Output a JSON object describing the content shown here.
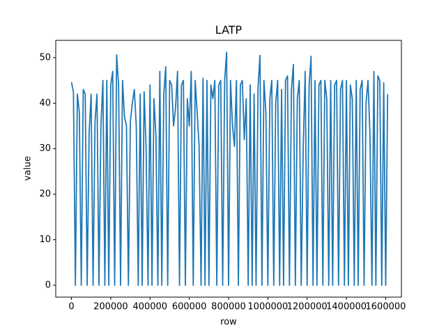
{
  "chart_data": {
    "type": "line",
    "title": "LATP",
    "x_label": "row",
    "y_label": "value",
    "color": "#1f77b4",
    "x": [
      0,
      10000,
      20000,
      30000,
      40000,
      50000,
      60000,
      70000,
      80000,
      90000,
      100000,
      110000,
      120000,
      130000,
      140000,
      150000,
      160000,
      170000,
      180000,
      190000,
      200000,
      210000,
      220000,
      230000,
      240000,
      250000,
      260000,
      270000,
      280000,
      290000,
      300000,
      310000,
      320000,
      330000,
      340000,
      350000,
      360000,
      370000,
      380000,
      390000,
      400000,
      410000,
      420000,
      430000,
      440000,
      450000,
      460000,
      470000,
      480000,
      490000,
      500000,
      510000,
      520000,
      530000,
      540000,
      550000,
      560000,
      570000,
      580000,
      590000,
      600000,
      610000,
      620000,
      630000,
      640000,
      650000,
      660000,
      670000,
      680000,
      690000,
      700000,
      710000,
      720000,
      730000,
      740000,
      750000,
      760000,
      770000,
      780000,
      790000,
      800000,
      810000,
      820000,
      830000,
      840000,
      850000,
      860000,
      870000,
      880000,
      890000,
      900000,
      910000,
      920000,
      930000,
      940000,
      950000,
      960000,
      970000,
      980000,
      990000,
      1000000,
      1010000,
      1020000,
      1030000,
      1040000,
      1050000,
      1060000,
      1070000,
      1080000,
      1090000,
      1100000,
      1110000,
      1120000,
      1130000,
      1140000,
      1150000,
      1160000,
      1170000,
      1180000,
      1190000,
      1200000,
      1210000,
      1220000,
      1230000,
      1240000,
      1250000,
      1260000,
      1270000,
      1280000,
      1290000,
      1300000,
      1310000,
      1320000,
      1330000,
      1340000,
      1350000,
      1360000,
      1370000,
      1380000,
      1390000,
      1400000,
      1410000,
      1420000,
      1430000,
      1440000,
      1450000,
      1460000,
      1470000,
      1480000,
      1490000,
      1500000,
      1510000,
      1520000,
      1530000,
      1540000,
      1550000,
      1560000,
      1570000,
      1580000,
      1590000,
      1600000,
      1610000
    ],
    "values": [
      44.6,
      42.5,
      0,
      42,
      38,
      0,
      43,
      42,
      0,
      33.5,
      42,
      0,
      36,
      42,
      0,
      35,
      45,
      0,
      45,
      0,
      44,
      47,
      0,
      50.6,
      44,
      0,
      45,
      37,
      35,
      0,
      36,
      40,
      43,
      35,
      0,
      42,
      0,
      42.5,
      30,
      0,
      44,
      0,
      41,
      33,
      0,
      47,
      0,
      42,
      48,
      0,
      45,
      44,
      35,
      39,
      47,
      0,
      44,
      45,
      0,
      41,
      35,
      47,
      0,
      45,
      38,
      30.5,
      0,
      45.5,
      0,
      45,
      0,
      44,
      41,
      45,
      0,
      44,
      45,
      0,
      45,
      51.2,
      0,
      45,
      35,
      30.5,
      45,
      0,
      44,
      45,
      32,
      41,
      0,
      44,
      0,
      42,
      0,
      43.5,
      50.5,
      0,
      45,
      38,
      0,
      41,
      45,
      0,
      40,
      45,
      0,
      43,
      0,
      45,
      46,
      0,
      43,
      48.5,
      0,
      41,
      45,
      0,
      30,
      47,
      0,
      44,
      50.3,
      0,
      45,
      0,
      44,
      45,
      0,
      45,
      41,
      0,
      45,
      0,
      44,
      45,
      0,
      43,
      45,
      0,
      45,
      0,
      44,
      41,
      0,
      45,
      0,
      43,
      45,
      0,
      40,
      45,
      33,
      0,
      47,
      0,
      46,
      45,
      0,
      44.5,
      0,
      42
    ],
    "xlim": [
      -80000,
      1680000
    ],
    "xticks": [
      0,
      200000,
      400000,
      600000,
      800000,
      1000000,
      1200000,
      1400000,
      1600000
    ],
    "ylim": [
      -2.6,
      53.8
    ],
    "yticks": [
      0,
      10,
      20,
      30,
      40,
      50
    ]
  }
}
